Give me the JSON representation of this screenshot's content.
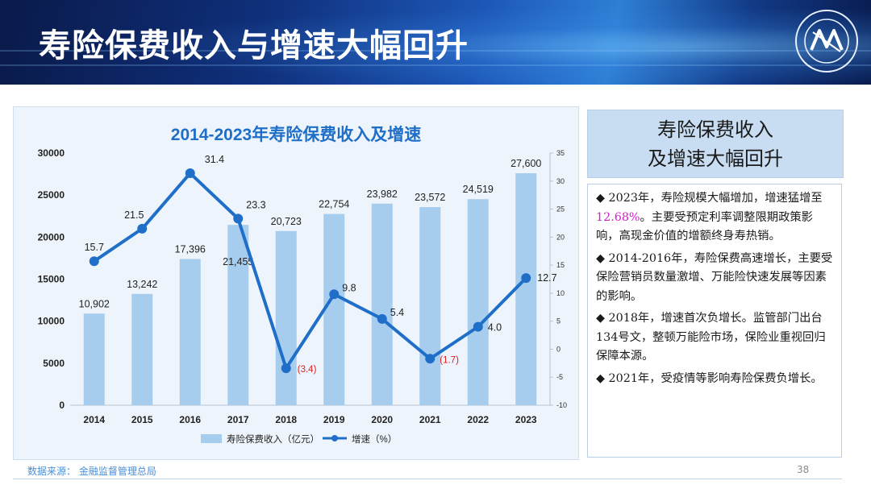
{
  "slide": {
    "title": "寿险保费收入与增速大幅回升",
    "page_number": "38",
    "source": "数据来源：  金融监督管理总局"
  },
  "sidebar": {
    "heading_line1": "寿险保费收入",
    "heading_line2": "及增速大幅回升",
    "notes": [
      {
        "text_a": "2023年，寿险规模大幅增加，增速猛增至",
        "highlight": "12.68%",
        "text_b": "。主要受预定利率调整限期政策影响，高现金价值的增额终身寿热销。"
      },
      {
        "text_a": "2014-2016年，寿险保费高速增长，主要受保险营销员数量激增、万能险快速发展等因素的影响。",
        "highlight": "",
        "text_b": ""
      },
      {
        "text_a": "2018年，增速首次负增长。监管部门出台134号文，整顿万能险市场，保险业重视回归保障本源。",
        "highlight": "",
        "text_b": ""
      },
      {
        "text_a": "2021年，受疫情等影响寿险保费负增长。",
        "highlight": "",
        "text_b": ""
      }
    ],
    "bullet": "◆"
  },
  "colors": {
    "bar": "#a7cdee",
    "line": "#1f6fc9",
    "negative_label": "#e02020",
    "title": "#1f6fc9"
  },
  "chart_data": {
    "type": "bar+line",
    "title": "2014-2023年寿险保费收入及增速",
    "categories": [
      "2014",
      "2015",
      "2016",
      "2017",
      "2018",
      "2019",
      "2020",
      "2021",
      "2022",
      "2023"
    ],
    "series": [
      {
        "name": "寿险保费收入（亿元）",
        "type": "bar",
        "axis": "left",
        "values": [
          10902,
          13242,
          17396,
          21455,
          20723,
          22754,
          23982,
          23572,
          24519,
          27600
        ],
        "labels": [
          "10,902",
          "13,242",
          "17,396",
          "21,455",
          "20,723",
          "22,754",
          "23,982",
          "23,572",
          "24,519",
          "27,600"
        ]
      },
      {
        "name": "增速（%）",
        "type": "line",
        "axis": "right",
        "values": [
          15.7,
          21.5,
          31.4,
          23.3,
          -3.4,
          9.8,
          5.4,
          -1.7,
          4.0,
          12.7
        ],
        "labels": [
          "15.7",
          "21.5",
          "31.4",
          "23.3",
          "(3.4)",
          "9.8",
          "5.4",
          "(1.7)",
          "4.0",
          "12.7"
        ]
      }
    ],
    "y_left": {
      "min": 0,
      "max": 30000,
      "ticks": [
        "0",
        "5000",
        "10000",
        "15000",
        "20000",
        "25000",
        "30000"
      ]
    },
    "y_right": {
      "min": -10,
      "max": 35,
      "ticks": [
        "-10",
        "-5",
        "0",
        "5",
        "10",
        "15",
        "20",
        "25",
        "30",
        "35"
      ]
    },
    "legend": "bottom-center",
    "grid": false
  }
}
